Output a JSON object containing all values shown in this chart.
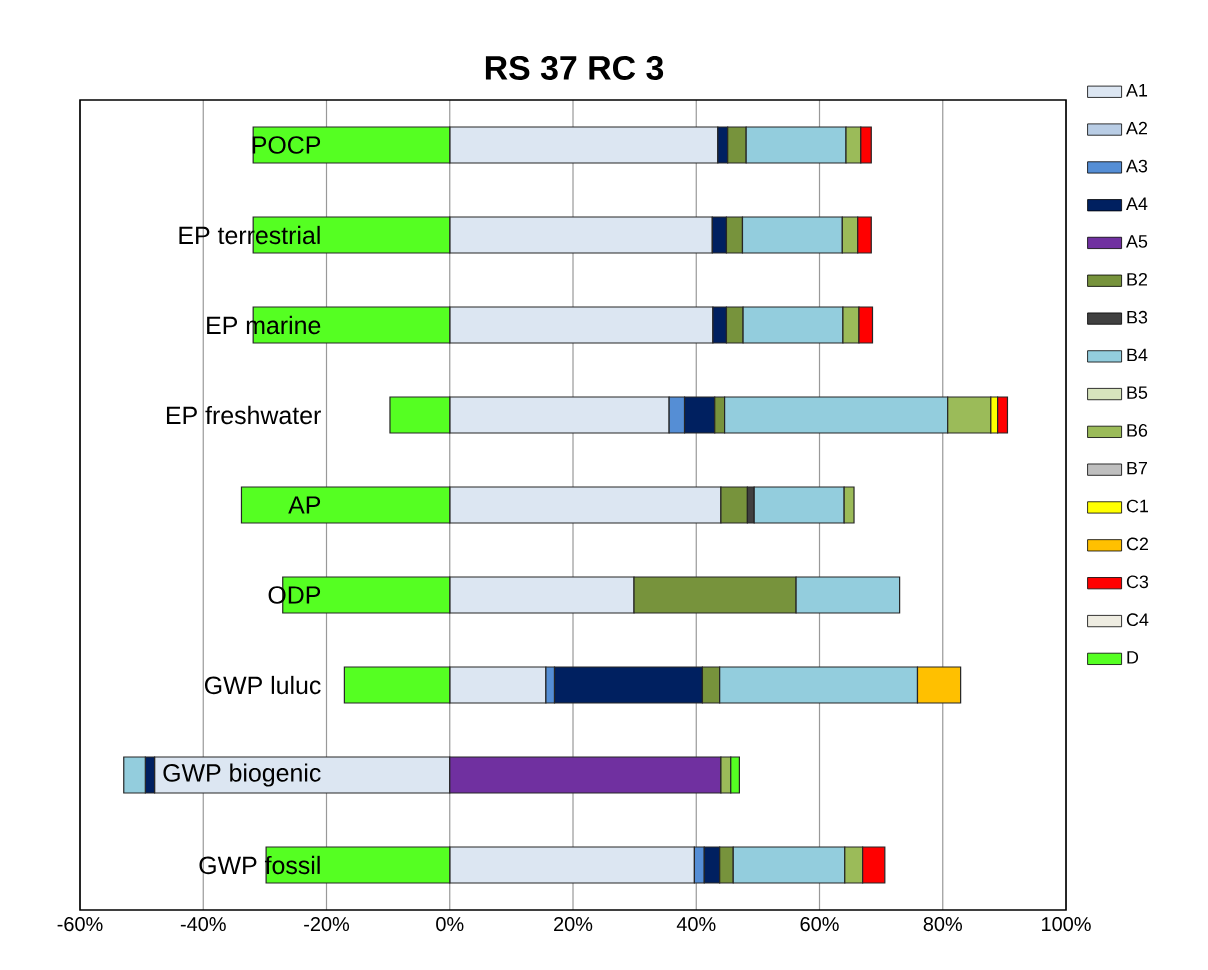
{
  "chart_data": {
    "type": "bar",
    "orientation": "horizontal",
    "stacked": true,
    "title": "RS 37 RC 3",
    "categories": [
      "POCP",
      "EP terrestrial",
      "EP marine",
      "EP freshwater",
      "AP",
      "ODP",
      "GWP luluc",
      "GWP biogenic",
      "GWP fossil"
    ],
    "xlim": [
      -60,
      100
    ],
    "xticks": [
      {
        "value": -60,
        "label": "-60%"
      },
      {
        "value": -40,
        "label": "-40%"
      },
      {
        "value": -20,
        "label": "-20%"
      },
      {
        "value": 0,
        "label": "0%"
      },
      {
        "value": 20,
        "label": "20%"
      },
      {
        "value": 40,
        "label": "40%"
      },
      {
        "value": 60,
        "label": "60%"
      },
      {
        "value": 80,
        "label": "80%"
      },
      {
        "value": 100,
        "label": "100%"
      }
    ],
    "grid": "x",
    "legend": "right",
    "series": [
      {
        "name": "A1",
        "color": "#dce6f2",
        "values": [
          43.5,
          42.6,
          42.7,
          35.6,
          44.0,
          29.9,
          15.6,
          -47.9,
          39.7
        ]
      },
      {
        "name": "A2",
        "color": "#b9cde5",
        "values": [
          null,
          null,
          null,
          null,
          null,
          null,
          null,
          null,
          null
        ]
      },
      {
        "name": "A3",
        "color": "#558ed5",
        "values": [
          null,
          null,
          null,
          2.5,
          null,
          null,
          1.4,
          null,
          1.6
        ]
      },
      {
        "name": "A4",
        "color": "#002060",
        "values": [
          1.6,
          2.3,
          2.2,
          4.9,
          null,
          null,
          24.0,
          -1.5,
          2.5
        ]
      },
      {
        "name": "A5",
        "color": "#7030a0",
        "values": [
          null,
          null,
          null,
          null,
          null,
          null,
          null,
          44.0,
          null
        ]
      },
      {
        "name": "B2",
        "color": "#77933c",
        "values": [
          3.0,
          2.6,
          2.7,
          1.6,
          4.3,
          26.3,
          2.8,
          null,
          2.2
        ]
      },
      {
        "name": "B3",
        "color": "#404040",
        "values": [
          null,
          null,
          null,
          null,
          1.1,
          null,
          null,
          null,
          null
        ]
      },
      {
        "name": "B4",
        "color": "#93cddd",
        "values": [
          16.2,
          16.2,
          16.2,
          36.2,
          14.6,
          16.8,
          32.1,
          -3.5,
          18.1
        ]
      },
      {
        "name": "B5",
        "color": "#d7e4bd",
        "values": [
          null,
          null,
          null,
          null,
          null,
          null,
          null,
          null,
          null
        ]
      },
      {
        "name": "B6",
        "color": "#9bbb59",
        "values": [
          2.4,
          2.5,
          2.6,
          7.0,
          1.6,
          null,
          null,
          1.6,
          2.9
        ]
      },
      {
        "name": "B7",
        "color": "#bfbfbf",
        "values": [
          null,
          null,
          null,
          null,
          null,
          null,
          null,
          null,
          null
        ]
      },
      {
        "name": "C1",
        "color": "#ffff00",
        "values": [
          null,
          null,
          null,
          1.1,
          null,
          null,
          null,
          null,
          null
        ]
      },
      {
        "name": "C2",
        "color": "#ffc000",
        "values": [
          null,
          null,
          null,
          null,
          null,
          null,
          7.0,
          null,
          null
        ]
      },
      {
        "name": "C3",
        "color": "#ff0000",
        "values": [
          1.7,
          2.2,
          2.2,
          1.6,
          null,
          null,
          null,
          null,
          3.6
        ]
      },
      {
        "name": "C4",
        "color": "#eeece1",
        "values": [
          null,
          null,
          null,
          null,
          null,
          null,
          null,
          null,
          null
        ]
      },
      {
        "name": "D",
        "color": "#55ff22",
        "values": [
          -31.9,
          -31.9,
          -31.9,
          -9.7,
          -33.8,
          -27.1,
          -17.1,
          1.4,
          -29.8
        ]
      }
    ]
  }
}
